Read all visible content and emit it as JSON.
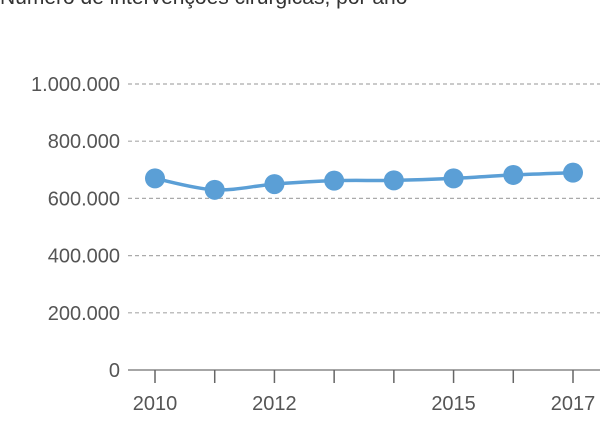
{
  "chart_data": {
    "type": "line",
    "title": "Número de intervenções cirúrgicas, por ano",
    "x": [
      2010,
      2011,
      2012,
      2013,
      2014,
      2015,
      2016,
      2017
    ],
    "x_tick_labels": [
      "2010",
      "2012",
      "2015",
      "2017"
    ],
    "series": [
      {
        "values": [
          670000,
          630000,
          650000,
          662000,
          663000,
          670000,
          682000,
          690000
        ]
      }
    ],
    "y_tick_labels": [
      "0",
      "200.000",
      "400.000",
      "600.000",
      "800.000",
      "1.000.000"
    ],
    "ylim": [
      0,
      1000000
    ],
    "xlim": [
      2010,
      2017
    ],
    "grid": "horizontal dashed",
    "line_color": "#5b9fd6"
  }
}
